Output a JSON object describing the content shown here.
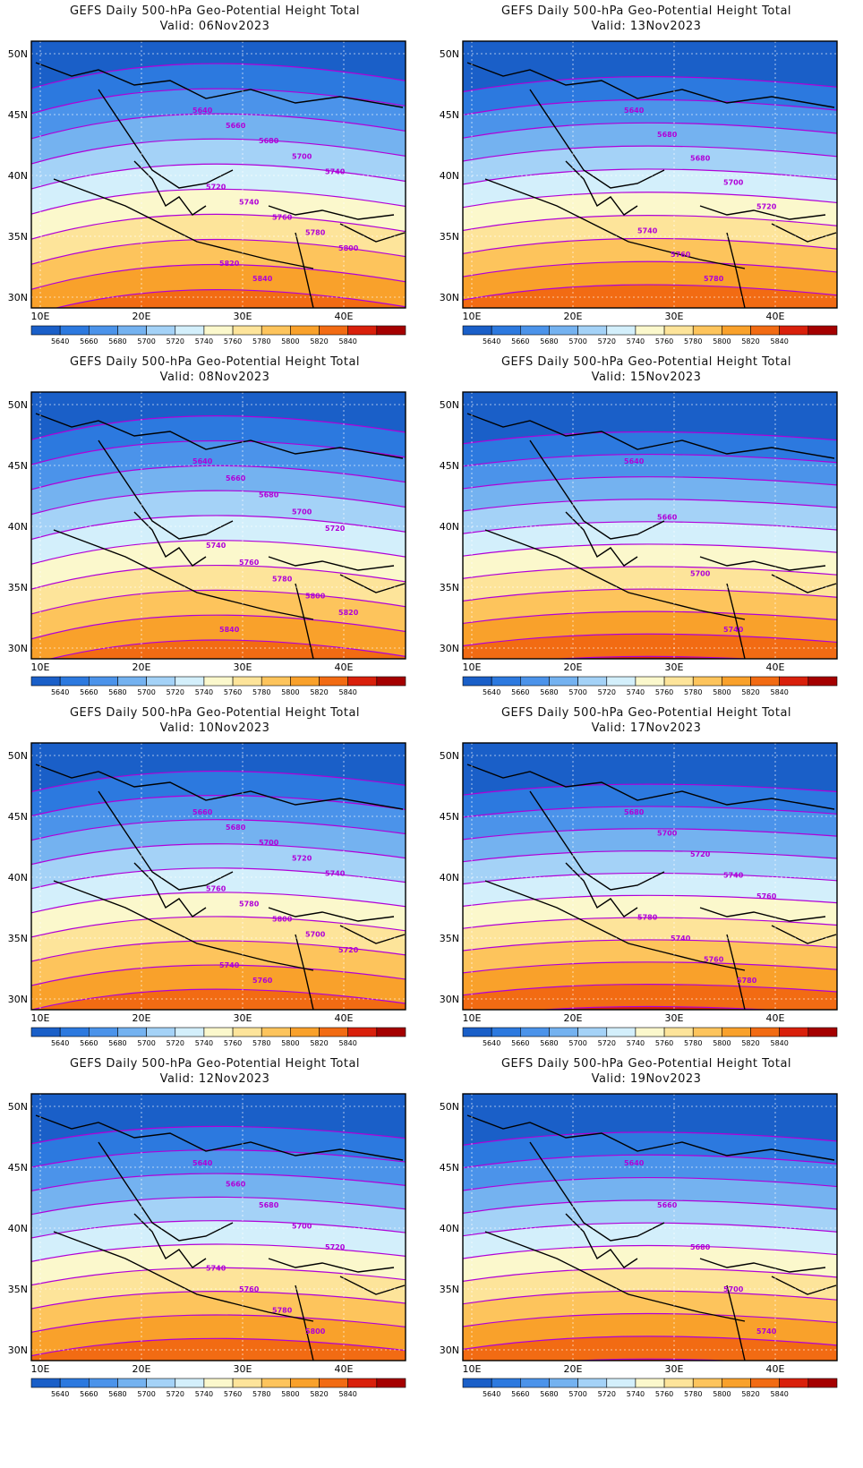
{
  "map": {
    "lat_labels": [
      "50N",
      "45N",
      "40N",
      "35N",
      "30N"
    ],
    "lon_labels": [
      "10E",
      "20E",
      "30E",
      "40E"
    ],
    "colorbar": {
      "labels": [
        "5640",
        "5660",
        "5680",
        "5700",
        "5720",
        "5740",
        "5760",
        "5780",
        "5800",
        "5820",
        "5840"
      ],
      "colors": [
        "#1a5fc8",
        "#2c79df",
        "#4b93ea",
        "#74b2f0",
        "#a4d2f7",
        "#d3effb",
        "#fbf8cc",
        "#fde49a",
        "#fdc45c",
        "#f9a12b",
        "#f26b13",
        "#d9200b",
        "#a50000"
      ]
    },
    "contour_color": "#b000d8"
  },
  "panels": [
    {
      "title": "GEFS Daily 500-hPa Geo-Potential Height Total",
      "valid": "Valid:  06Nov2023",
      "labels": [
        "5640",
        "5660",
        "5680",
        "5700",
        "5740",
        "5720",
        "5740",
        "5760",
        "5780",
        "5800",
        "5820",
        "5840"
      ]
    },
    {
      "title": "GEFS Daily 500-hPa Geo-Potential Height Total",
      "valid": "Valid:  13Nov2023",
      "labels": [
        "5640",
        "5680",
        "5680",
        "5700",
        "5720",
        "5740",
        "5760",
        "5780"
      ]
    },
    {
      "title": "GEFS Daily 500-hPa Geo-Potential Height Total",
      "valid": "Valid:  08Nov2023",
      "labels": [
        "5640",
        "5660",
        "5680",
        "5700",
        "5720",
        "5740",
        "5760",
        "5780",
        "5800",
        "5820",
        "5840"
      ]
    },
    {
      "title": "GEFS Daily 500-hPa Geo-Potential Height Total",
      "valid": "Valid:  15Nov2023",
      "labels": [
        "5640",
        "5660",
        "5700",
        "5740"
      ]
    },
    {
      "title": "GEFS Daily 500-hPa Geo-Potential Height Total",
      "valid": "Valid:  10Nov2023",
      "labels": [
        "5660",
        "5680",
        "5700",
        "5720",
        "5740",
        "5760",
        "5780",
        "5800",
        "5700",
        "5720",
        "5740",
        "5760"
      ]
    },
    {
      "title": "GEFS Daily 500-hPa Geo-Potential Height Total",
      "valid": "Valid:  17Nov2023",
      "labels": [
        "5680",
        "5700",
        "5720",
        "5740",
        "5760",
        "5780",
        "5740",
        "5760",
        "5780"
      ]
    },
    {
      "title": "GEFS Daily 500-hPa Geo-Potential Height Total",
      "valid": "Valid:  12Nov2023",
      "labels": [
        "5640",
        "5660",
        "5680",
        "5700",
        "5720",
        "5740",
        "5760",
        "5780",
        "5800"
      ]
    },
    {
      "title": "GEFS Daily 500-hPa Geo-Potential Height Total",
      "valid": "Valid:  19Nov2023",
      "labels": [
        "5640",
        "5660",
        "5680",
        "5700",
        "5740"
      ]
    }
  ]
}
